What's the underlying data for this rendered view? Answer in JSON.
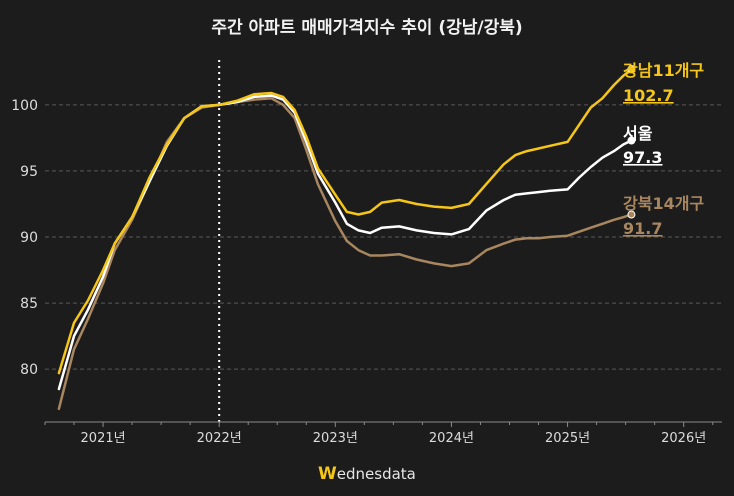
{
  "chart_data": {
    "type": "line",
    "title": "주간 아파트 매매가격지수 추이 (강남/강북)",
    "xlabel": "",
    "ylabel": "",
    "ylim": [
      76,
      104
    ],
    "xlim": [
      2020.5,
      2026.33
    ],
    "yticks": [
      80,
      85,
      90,
      95,
      100
    ],
    "xticks": [
      {
        "x": 2021.0,
        "label": "2021년"
      },
      {
        "x": 2022.0,
        "label": "2022년"
      },
      {
        "x": 2023.0,
        "label": "2023년"
      },
      {
        "x": 2024.0,
        "label": "2024년"
      },
      {
        "x": 2025.0,
        "label": "2025년"
      },
      {
        "x": 2026.0,
        "label": "2026년"
      }
    ],
    "reference_line": {
      "x": 2022.0,
      "style": "dotted"
    },
    "grid": true,
    "series": [
      {
        "name": "강남11개구",
        "end_value": "102.7",
        "color": "#f5c518",
        "x": [
          2020.62,
          2020.75,
          2020.87,
          2021.0,
          2021.1,
          2021.25,
          2021.4,
          2021.55,
          2021.7,
          2021.85,
          2022.0,
          2022.15,
          2022.3,
          2022.45,
          2022.55,
          2022.65,
          2022.75,
          2022.85,
          2023.0,
          2023.1,
          2023.2,
          2023.3,
          2023.4,
          2023.55,
          2023.7,
          2023.85,
          2024.0,
          2024.15,
          2024.3,
          2024.45,
          2024.55,
          2024.65,
          2024.75,
          2024.85,
          2025.0,
          2025.1,
          2025.2,
          2025.3,
          2025.4,
          2025.48,
          2025.55
        ],
        "values": [
          79.7,
          83.5,
          85.2,
          87.5,
          89.5,
          91.5,
          94.5,
          97.0,
          99.0,
          99.9,
          100.0,
          100.3,
          100.8,
          100.9,
          100.6,
          99.6,
          97.6,
          95.2,
          93.2,
          91.9,
          91.7,
          91.9,
          92.6,
          92.8,
          92.5,
          92.3,
          92.2,
          92.5,
          94.0,
          95.5,
          96.2,
          96.5,
          96.7,
          96.9,
          97.2,
          98.5,
          99.8,
          100.5,
          101.5,
          102.2,
          102.7
        ]
      },
      {
        "name": "서울",
        "end_value": "97.3",
        "color": "#ffffff",
        "x": [
          2020.62,
          2020.75,
          2020.87,
          2021.0,
          2021.1,
          2021.25,
          2021.4,
          2021.55,
          2021.7,
          2021.85,
          2022.0,
          2022.15,
          2022.3,
          2022.45,
          2022.55,
          2022.65,
          2022.75,
          2022.85,
          2023.0,
          2023.1,
          2023.2,
          2023.3,
          2023.4,
          2023.55,
          2023.7,
          2023.85,
          2024.0,
          2024.15,
          2024.3,
          2024.45,
          2024.55,
          2024.65,
          2024.75,
          2024.85,
          2025.0,
          2025.1,
          2025.2,
          2025.3,
          2025.4,
          2025.48,
          2025.55
        ],
        "values": [
          78.5,
          82.5,
          84.5,
          87.0,
          89.5,
          91.5,
          94.2,
          96.9,
          99.0,
          99.9,
          100.0,
          100.2,
          100.6,
          100.7,
          100.4,
          99.4,
          97.2,
          94.8,
          92.6,
          91.0,
          90.5,
          90.3,
          90.7,
          90.8,
          90.5,
          90.3,
          90.2,
          90.6,
          92.0,
          92.8,
          93.2,
          93.3,
          93.4,
          93.5,
          93.6,
          94.5,
          95.3,
          96.0,
          96.5,
          97.0,
          97.3
        ]
      },
      {
        "name": "강북14개구",
        "end_value": "91.7",
        "color": "#a8865f",
        "x": [
          2020.62,
          2020.75,
          2020.87,
          2021.0,
          2021.1,
          2021.25,
          2021.4,
          2021.55,
          2021.7,
          2021.85,
          2022.0,
          2022.15,
          2022.3,
          2022.45,
          2022.55,
          2022.65,
          2022.75,
          2022.85,
          2023.0,
          2023.1,
          2023.2,
          2023.3,
          2023.4,
          2023.55,
          2023.7,
          2023.85,
          2024.0,
          2024.15,
          2024.3,
          2024.45,
          2024.55,
          2024.65,
          2024.75,
          2024.85,
          2025.0,
          2025.1,
          2025.2,
          2025.3,
          2025.4,
          2025.48,
          2025.55
        ],
        "values": [
          77.0,
          81.5,
          83.8,
          86.5,
          89.0,
          91.3,
          94.2,
          97.2,
          99.0,
          99.8,
          100.0,
          100.2,
          100.4,
          100.5,
          100.0,
          99.0,
          96.6,
          94.0,
          91.2,
          89.7,
          89.0,
          88.6,
          88.6,
          88.7,
          88.3,
          88.0,
          87.8,
          88.0,
          89.0,
          89.5,
          89.8,
          89.9,
          89.9,
          90.0,
          90.1,
          90.4,
          90.7,
          91.0,
          91.3,
          91.5,
          91.7
        ]
      }
    ]
  },
  "brand": {
    "mark": "W",
    "rest": "ednesdata",
    "accent_color": "#f5c518"
  }
}
